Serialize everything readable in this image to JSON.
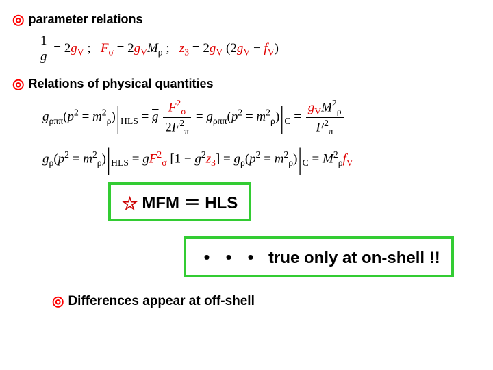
{
  "headings": {
    "param": "parameter relations",
    "phys": "Relations of physical quantities",
    "diff": "Differences appear at off-shell"
  },
  "boxes": {
    "mfm": "MFM ＝ HLS",
    "onshell": "true only at on-shell !!"
  },
  "bullets": {
    "double_ring": "◎",
    "star": "☆",
    "dots": "・・・"
  },
  "colors": {
    "bullet": "#ff0000",
    "highlight": "#e00000",
    "box_border": "#33cc33",
    "text": "#000000",
    "background": "#ffffff"
  },
  "typography": {
    "heading_fontsize": 18,
    "formula_fontsize": 19,
    "box_fontsize": 24,
    "heading_weight": "bold"
  },
  "eq": {
    "one": "1",
    "g": "g",
    "two": "2",
    "gV": "g",
    "V": "V",
    "semi": " ;",
    "Fsigma": "F",
    "sigma": "σ",
    "Mrho": "M",
    "rho": "ρ",
    "z3": "z",
    "three": "3",
    "fV": "f",
    "eq": " = ",
    "lpar": "(",
    "rpar": ")",
    "minus": " − ",
    "grhopipi": "g",
    "rhopipi": "ρππ",
    "p2": "p",
    "sq": "2",
    "mrho": "m",
    "bar_HLS": "HLS",
    "bar_C": "C",
    "Fpi": "F",
    "pi": "π",
    "sqF": "2",
    "grho": "g",
    "lbr": "[",
    "rbr": "]",
    "M2": "M",
    "barsym": "|"
  }
}
